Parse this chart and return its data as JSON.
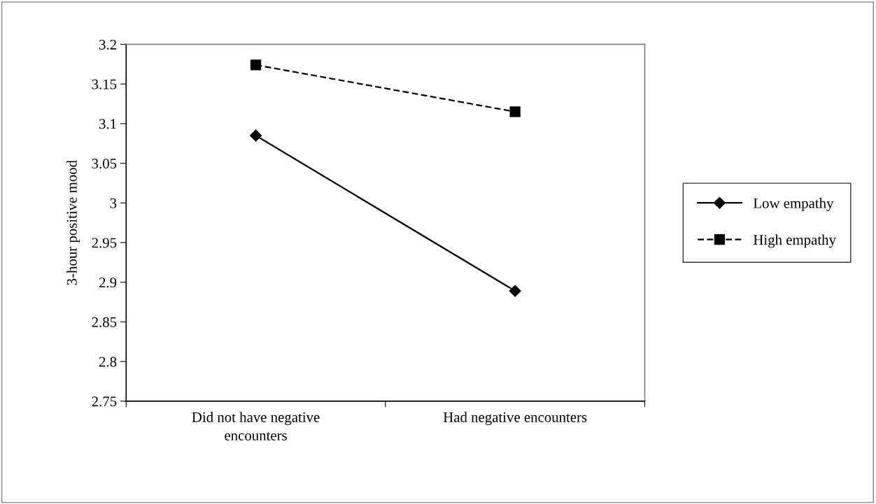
{
  "chart_data": {
    "type": "line",
    "ylabel": "3-hour positive mood",
    "categories": [
      "Did not have negative\nencounters",
      "Had negative encounters"
    ],
    "series": [
      {
        "name": "Low empathy",
        "color": "#000000",
        "values": [
          3.085,
          2.889
        ],
        "marker": "diamond",
        "line_style": "solid"
      },
      {
        "name": "High empathy",
        "color": "#000000",
        "values": [
          3.174,
          3.115
        ],
        "marker": "square",
        "line_style": "dashed"
      }
    ],
    "ylim": [
      2.75,
      3.2
    ],
    "yticks": [
      2.75,
      2.8,
      2.85,
      2.9,
      2.95,
      3,
      3.05,
      3.1,
      3.15,
      3.2
    ],
    "grid": false,
    "legend": "right"
  }
}
